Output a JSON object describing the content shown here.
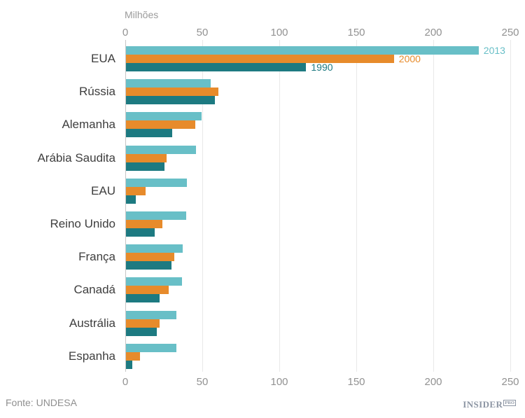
{
  "header": {
    "axis_unit_label": "Milhões"
  },
  "footer": {
    "source": "Fonte: UNDESA",
    "logo_text": "INSIDER",
    "logo_suffix": "PRO"
  },
  "colors": {
    "series_2013": "#68bfc7",
    "series_2000": "#e78b2b",
    "series_1990": "#1d7a81",
    "gridline": "#e9e9e9",
    "axis_line": "#c6c6c6",
    "tick_label": "#929292",
    "country_label": "#3e3e3e",
    "source_text": "#8f8f8f",
    "logo": "#8c95a3"
  },
  "chart_data": {
    "type": "bar",
    "orientation": "horizontal",
    "title": "",
    "xlabel": "Milhões",
    "ylabel": "",
    "xlim": [
      0,
      250
    ],
    "xticks": [
      0,
      50,
      100,
      150,
      200,
      250
    ],
    "grid": true,
    "legend_position": "inline-first-group",
    "categories": [
      "EUA",
      "Rússia",
      "Alemanha",
      "Arábia Saudita",
      "EAU",
      "Reino Unido",
      "França",
      "Canadá",
      "Austrália",
      "Espanha"
    ],
    "series": [
      {
        "name": "2013",
        "color": "#68bfc7",
        "values": [
          229,
          55,
          49,
          45.5,
          39.5,
          39,
          37,
          36.5,
          32.5,
          32.5
        ]
      },
      {
        "name": "2000",
        "color": "#e78b2b",
        "values": [
          174,
          60,
          45,
          26.5,
          12.5,
          23.5,
          31.5,
          27.5,
          22,
          9
        ]
      },
      {
        "name": "1990",
        "color": "#1d7a81",
        "values": [
          117,
          57.5,
          30,
          25,
          6.5,
          18.5,
          29.5,
          22,
          20,
          4
        ]
      }
    ]
  }
}
